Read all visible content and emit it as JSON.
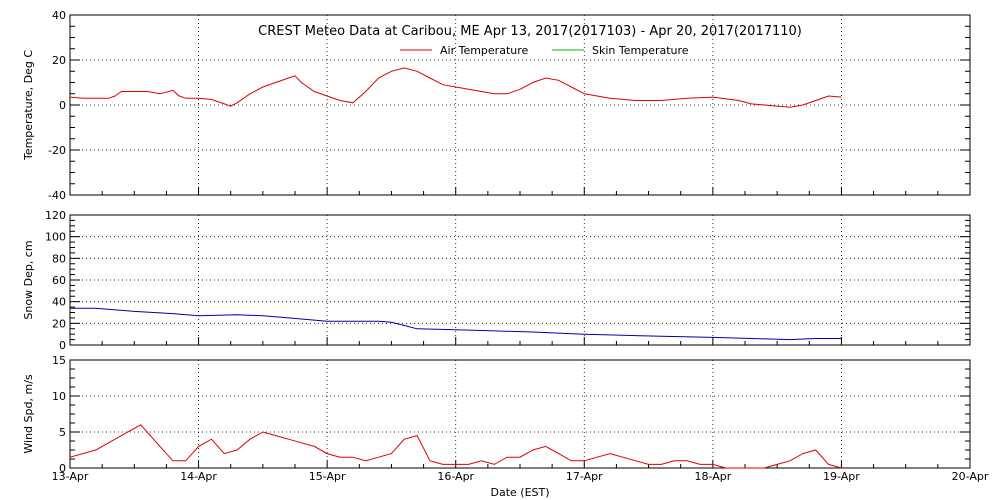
{
  "title": "CREST Meteo Data at Caribou, ME   Apr 13, 2017(2017103) - Apr 20, 2017(2017110)",
  "colors": {
    "air": "#dd0000",
    "skin": "#00bb00",
    "snow": "#0000aa",
    "wind": "#dd0000",
    "axis": "#000000"
  },
  "chart_data": {
    "type": "line",
    "xlabel": "Date (EST)",
    "x_ticks": [
      "13-Apr",
      "14-Apr",
      "15-Apr",
      "16-Apr",
      "17-Apr",
      "18-Apr",
      "19-Apr",
      "20-Apr"
    ],
    "xlim_days": [
      0,
      7
    ],
    "grid": true,
    "legend": {
      "placement": "top-center",
      "entries": [
        "Air Temperature",
        "Skin Temperature"
      ]
    },
    "panels": [
      {
        "id": "temperature",
        "ylabel": "Temperature, Deg C",
        "ylim": [
          -40,
          40
        ],
        "yticks": [
          -40,
          -20,
          0,
          20,
          40
        ],
        "series": [
          {
            "name": "Air Temperature",
            "color": "#dd0000",
            "x": [
              0,
              0.1,
              0.2,
              0.3,
              0.35,
              0.4,
              0.5,
              0.6,
              0.7,
              0.8,
              0.85,
              0.9,
              1.0,
              1.1,
              1.2,
              1.25,
              1.3,
              1.4,
              1.5,
              1.6,
              1.7,
              1.75,
              1.8,
              1.9,
              2.0,
              2.1,
              2.2,
              2.3,
              2.4,
              2.5,
              2.6,
              2.7,
              2.8,
              2.9,
              3.0,
              3.1,
              3.2,
              3.3,
              3.4,
              3.5,
              3.6,
              3.7,
              3.8,
              3.9,
              4.0,
              4.2,
              4.4,
              4.6,
              4.8,
              5.0,
              5.2,
              5.3,
              5.4,
              5.5,
              5.6,
              5.7,
              5.8,
              5.9,
              6.0
            ],
            "y": [
              3.5,
              3,
              3,
              3,
              4,
              6,
              6,
              6,
              5,
              6.5,
              4,
              3,
              3,
              2.5,
              0.5,
              -0.5,
              1,
              5,
              8,
              10,
              12,
              13,
              10,
              6,
              4,
              2,
              1,
              6,
              12,
              15,
              16.5,
              15,
              12,
              9,
              8,
              7,
              6,
              5,
              5,
              7,
              10,
              12,
              11,
              8,
              5,
              3,
              2,
              2,
              3,
              3.5,
              2,
              0.5,
              0,
              -0.5,
              -1,
              0,
              2,
              4,
              3.5
            ]
          },
          {
            "name": "Skin Temperature",
            "color": "#00bb00",
            "x": [],
            "y": []
          }
        ]
      },
      {
        "id": "snow",
        "ylabel": "Snow Dep, cm",
        "ylim": [
          0,
          120
        ],
        "yticks": [
          0,
          20,
          40,
          60,
          80,
          100,
          120
        ],
        "series": [
          {
            "name": "Snow Depth",
            "color": "#0000aa",
            "x": [
              0,
              0.2,
              0.5,
              0.8,
              1.0,
              1.3,
              1.5,
              1.7,
              2.0,
              2.2,
              2.4,
              2.5,
              2.6,
              2.7,
              3.0,
              3.3,
              3.6,
              4.0,
              4.3,
              4.6,
              5.0,
              5.3,
              5.6,
              5.8,
              6.0
            ],
            "y": [
              34,
              34,
              31,
              29,
              27,
              28,
              27,
              25,
              22,
              22,
              22,
              21,
              18,
              15,
              14,
              13,
              12,
              10,
              9,
              8,
              7,
              6,
              5,
              6,
              6
            ]
          }
        ]
      },
      {
        "id": "wind",
        "ylabel": "Wind Spd, m/s",
        "ylim": [
          0,
          15
        ],
        "yticks": [
          0,
          5,
          10,
          15
        ],
        "series": [
          {
            "name": "Wind Speed",
            "color": "#dd0000",
            "x": [
              0,
              0.1,
              0.2,
              0.3,
              0.4,
              0.5,
              0.55,
              0.6,
              0.7,
              0.8,
              0.9,
              1.0,
              1.1,
              1.2,
              1.3,
              1.4,
              1.5,
              1.6,
              1.7,
              1.8,
              1.9,
              2.0,
              2.1,
              2.2,
              2.3,
              2.4,
              2.5,
              2.6,
              2.7,
              2.8,
              2.9,
              3.0,
              3.1,
              3.2,
              3.3,
              3.4,
              3.5,
              3.6,
              3.7,
              3.8,
              3.9,
              4.0,
              4.1,
              4.2,
              4.3,
              4.4,
              4.5,
              4.6,
              4.7,
              4.8,
              4.9,
              5.0,
              5.1,
              5.2,
              5.3,
              5.4,
              5.5,
              5.6,
              5.7,
              5.8,
              5.9,
              6.0
            ],
            "y": [
              1.5,
              2,
              2.5,
              3.5,
              4.5,
              5.5,
              6,
              5,
              3,
              1,
              1,
              3,
              4,
              2,
              2.5,
              4,
              5,
              4.5,
              4,
              3.5,
              3,
              2,
              1.5,
              1.5,
              1,
              1.5,
              2,
              4,
              4.5,
              1,
              0.5,
              0.5,
              0.5,
              1,
              0.5,
              1.5,
              1.5,
              2.5,
              3,
              2,
              1,
              1,
              1.5,
              2,
              1.5,
              1,
              0.5,
              0.5,
              1,
              1,
              0.5,
              0.5,
              0,
              0,
              0,
              0,
              0.5,
              1,
              2,
              2.5,
              0.5,
              0
            ]
          }
        ]
      }
    ]
  }
}
